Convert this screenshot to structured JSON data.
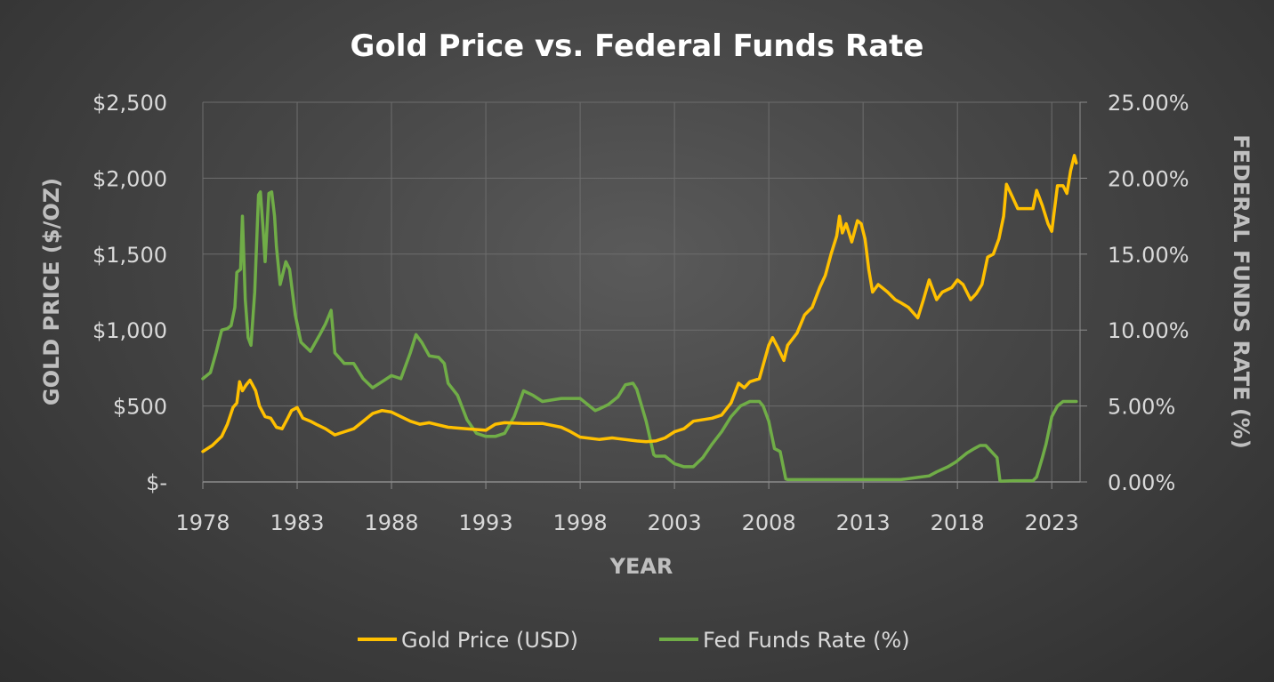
{
  "chart_data": {
    "type": "line",
    "title": "Gold Price vs. Federal Funds Rate",
    "xlabel": "YEAR",
    "ylabel_left": "GOLD PRICE ($/OZ)",
    "ylabel_right": "FEDERAL FUNDS RATE (%)",
    "xlim": [
      1978,
      2024.5
    ],
    "ylim_left": [
      0,
      2500
    ],
    "ylim_right": [
      0,
      25
    ],
    "x_ticks": [
      "1978",
      "1983",
      "1988",
      "1993",
      "1998",
      "2003",
      "2008",
      "2013",
      "2018",
      "2023"
    ],
    "y_ticks_left": [
      "$2,500",
      "$2,000",
      "$1,500",
      "$1,000",
      "$500",
      "$-"
    ],
    "y_ticks_right": [
      "25.00%",
      "20.00%",
      "15.00%",
      "10.00%",
      "5.00%",
      "0.00%"
    ],
    "grid": true,
    "legend_position": "bottom",
    "series": [
      {
        "name": "Gold Price (USD)",
        "axis": "left",
        "color": "#ffc000",
        "x": [
          1978.0,
          1978.5,
          1979.0,
          1979.3,
          1979.6,
          1979.8,
          1979.95,
          1980.1,
          1980.3,
          1980.5,
          1980.8,
          1981.0,
          1981.3,
          1981.6,
          1981.9,
          1982.2,
          1982.5,
          1982.7,
          1983.0,
          1983.3,
          1983.7,
          1984.0,
          1984.5,
          1985.0,
          1985.5,
          1986.0,
          1986.5,
          1987.0,
          1987.5,
          1988.0,
          1988.5,
          1989.0,
          1989.5,
          1990.0,
          1991.0,
          1992.0,
          1993.0,
          1993.5,
          1994.0,
          1995.0,
          1996.0,
          1997.0,
          1997.5,
          1998.0,
          1999.0,
          1999.7,
          2000.0,
          2001.0,
          2001.5,
          2002.0,
          2002.5,
          2003.0,
          2003.5,
          2004.0,
          2005.0,
          2005.5,
          2006.0,
          2006.4,
          2006.7,
          2007.0,
          2007.5,
          2008.0,
          2008.2,
          2008.5,
          2008.8,
          2009.0,
          2009.5,
          2009.9,
          2010.3,
          2010.7,
          2011.0,
          2011.3,
          2011.6,
          2011.75,
          2011.9,
          2012.1,
          2012.4,
          2012.7,
          2012.9,
          2013.1,
          2013.3,
          2013.5,
          2013.8,
          2014.0,
          2014.3,
          2014.7,
          2015.0,
          2015.4,
          2015.9,
          2016.2,
          2016.5,
          2016.9,
          2017.2,
          2017.7,
          2018.0,
          2018.3,
          2018.7,
          2019.0,
          2019.3,
          2019.6,
          2019.9,
          2020.2,
          2020.45,
          2020.6,
          2020.9,
          2021.2,
          2021.6,
          2022.0,
          2022.2,
          2022.5,
          2022.8,
          2023.0,
          2023.3,
          2023.6,
          2023.8,
          2024.0,
          2024.2,
          2024.3
        ],
        "values": [
          200,
          240,
          300,
          380,
          490,
          520,
          660,
          600,
          640,
          670,
          600,
          500,
          430,
          420,
          360,
          350,
          420,
          470,
          490,
          420,
          400,
          380,
          350,
          310,
          330,
          350,
          400,
          450,
          470,
          460,
          430,
          400,
          380,
          390,
          360,
          350,
          340,
          380,
          390,
          385,
          385,
          360,
          330,
          295,
          280,
          290,
          285,
          270,
          265,
          270,
          290,
          330,
          350,
          400,
          420,
          440,
          520,
          650,
          620,
          660,
          680,
          900,
          950,
          880,
          800,
          900,
          980,
          1100,
          1150,
          1280,
          1360,
          1500,
          1620,
          1750,
          1640,
          1700,
          1580,
          1720,
          1700,
          1600,
          1400,
          1250,
          1300,
          1280,
          1250,
          1200,
          1180,
          1150,
          1080,
          1200,
          1330,
          1200,
          1250,
          1280,
          1330,
          1300,
          1200,
          1240,
          1300,
          1480,
          1500,
          1600,
          1750,
          1960,
          1880,
          1800,
          1800,
          1800,
          1920,
          1820,
          1700,
          1650,
          1950,
          1950,
          1900,
          2050,
          2150,
          2100
        ]
      },
      {
        "name": "Fed Funds Rate (%)",
        "axis": "right",
        "color": "#70ad47",
        "x": [
          1978.0,
          1978.4,
          1978.7,
          1979.0,
          1979.3,
          1979.5,
          1979.7,
          1979.8,
          1980.0,
          1980.1,
          1980.25,
          1980.4,
          1980.55,
          1980.75,
          1980.95,
          1981.05,
          1981.2,
          1981.3,
          1981.5,
          1981.65,
          1981.8,
          1981.9,
          1982.1,
          1982.4,
          1982.6,
          1982.9,
          1983.2,
          1983.7,
          1984.2,
          1984.5,
          1984.8,
          1985.0,
          1985.5,
          1986.0,
          1986.5,
          1987.0,
          1987.5,
          1988.0,
          1988.5,
          1989.0,
          1989.3,
          1989.6,
          1990.0,
          1990.5,
          1990.8,
          1991.0,
          1991.5,
          1992.0,
          1992.5,
          1993.0,
          1993.5,
          1994.0,
          1994.5,
          1995.0,
          1995.5,
          1996.0,
          1997.0,
          1998.0,
          1998.8,
          1999.0,
          1999.5,
          2000.0,
          2000.4,
          2000.8,
          2001.0,
          2001.5,
          2001.9,
          2002.0,
          2002.5,
          2003.0,
          2003.5,
          2004.0,
          2004.5,
          2005.0,
          2005.5,
          2006.0,
          2006.5,
          2007.0,
          2007.5,
          2007.7,
          2008.0,
          2008.3,
          2008.6,
          2008.9,
          2009.0,
          2010.0,
          2012.0,
          2015.0,
          2015.9,
          2016.5,
          2016.9,
          2017.5,
          2017.9,
          2018.5,
          2018.9,
          2019.2,
          2019.5,
          2019.8,
          2020.1,
          2020.25,
          2020.3,
          2021.0,
          2022.0,
          2022.2,
          2022.5,
          2022.7,
          2023.0,
          2023.3,
          2023.6,
          2024.0,
          2024.3
        ],
        "values": [
          6.8,
          7.2,
          8.5,
          10.0,
          10.1,
          10.3,
          11.5,
          13.8,
          14.0,
          17.5,
          12.0,
          9.5,
          9.0,
          12.5,
          18.9,
          19.1,
          16.5,
          14.5,
          19.0,
          19.1,
          17.5,
          15.5,
          13.0,
          14.5,
          14.0,
          11.0,
          9.2,
          8.6,
          9.7,
          10.4,
          11.3,
          8.5,
          7.8,
          7.8,
          6.8,
          6.2,
          6.6,
          7.0,
          6.8,
          8.5,
          9.7,
          9.2,
          8.3,
          8.2,
          7.8,
          6.5,
          5.7,
          4.1,
          3.2,
          3.0,
          3.0,
          3.2,
          4.3,
          6.0,
          5.7,
          5.3,
          5.5,
          5.5,
          4.7,
          4.8,
          5.1,
          5.6,
          6.4,
          6.5,
          6.1,
          4.0,
          1.8,
          1.7,
          1.7,
          1.2,
          1.0,
          1.0,
          1.6,
          2.5,
          3.3,
          4.3,
          5.0,
          5.3,
          5.3,
          5.0,
          4.0,
          2.2,
          2.0,
          0.2,
          0.15,
          0.15,
          0.15,
          0.15,
          0.3,
          0.4,
          0.66,
          1.0,
          1.3,
          1.9,
          2.2,
          2.4,
          2.4,
          2.0,
          1.6,
          0.1,
          0.05,
          0.08,
          0.08,
          0.33,
          1.6,
          2.5,
          4.3,
          5.0,
          5.3,
          5.3,
          5.3
        ]
      }
    ]
  }
}
